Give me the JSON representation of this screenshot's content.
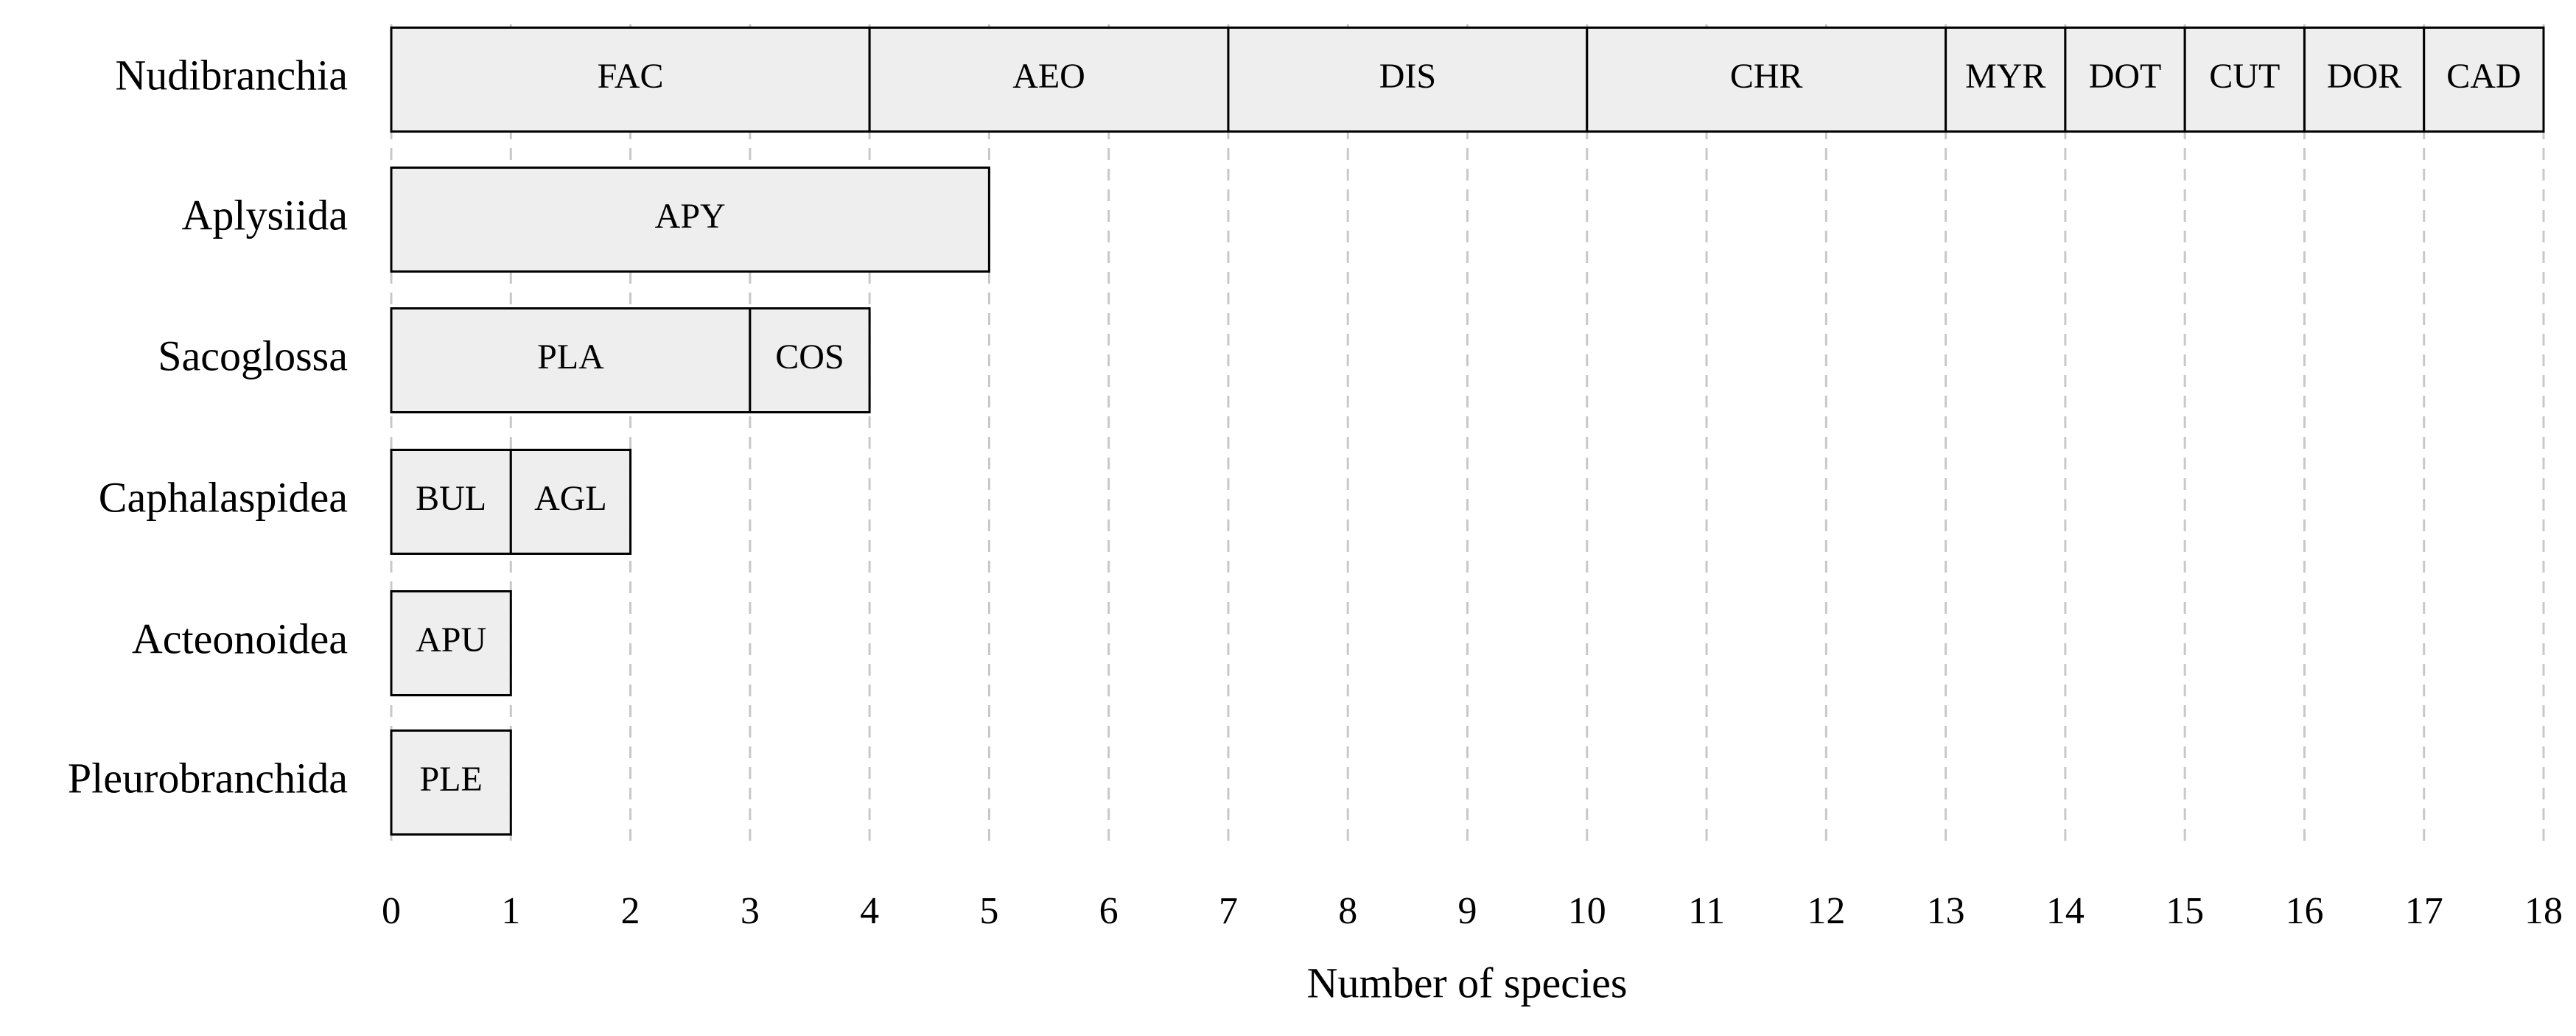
{
  "chart_data": {
    "type": "stacked-barh",
    "groups": [
      {
        "name": "Nudibranchia",
        "segments": [
          {
            "label": "FAC",
            "value": 4
          },
          {
            "label": "AEO",
            "value": 3
          },
          {
            "label": "DIS",
            "value": 3
          },
          {
            "label": "CHR",
            "value": 3
          },
          {
            "label": "MYR",
            "value": 1
          },
          {
            "label": "DOT",
            "value": 1
          },
          {
            "label": "CUT",
            "value": 1
          },
          {
            "label": "DOR",
            "value": 1
          },
          {
            "label": "CAD",
            "value": 1
          }
        ]
      },
      {
        "name": "Aplysiida",
        "segments": [
          {
            "label": "APY",
            "value": 5
          }
        ]
      },
      {
        "name": "Sacoglossa",
        "segments": [
          {
            "label": "PLA",
            "value": 3
          },
          {
            "label": "COS",
            "value": 1
          }
        ]
      },
      {
        "name": "Caphalaspidea",
        "segments": [
          {
            "label": "BUL",
            "value": 1
          },
          {
            "label": "AGL",
            "value": 1
          }
        ]
      },
      {
        "name": "Acteonoidea",
        "segments": [
          {
            "label": "APU",
            "value": 1
          }
        ]
      },
      {
        "name": "Pleurobranchida",
        "segments": [
          {
            "label": "PLE",
            "value": 1
          }
        ]
      }
    ],
    "xlabel": "Number of species",
    "xlim": [
      0,
      18
    ],
    "xticks": [
      0,
      1,
      2,
      3,
      4,
      5,
      6,
      7,
      8,
      9,
      10,
      11,
      12,
      13,
      14,
      15,
      16,
      17,
      18
    ],
    "color": "#eeeeee",
    "edgecolor": "#000000",
    "grid": true
  }
}
